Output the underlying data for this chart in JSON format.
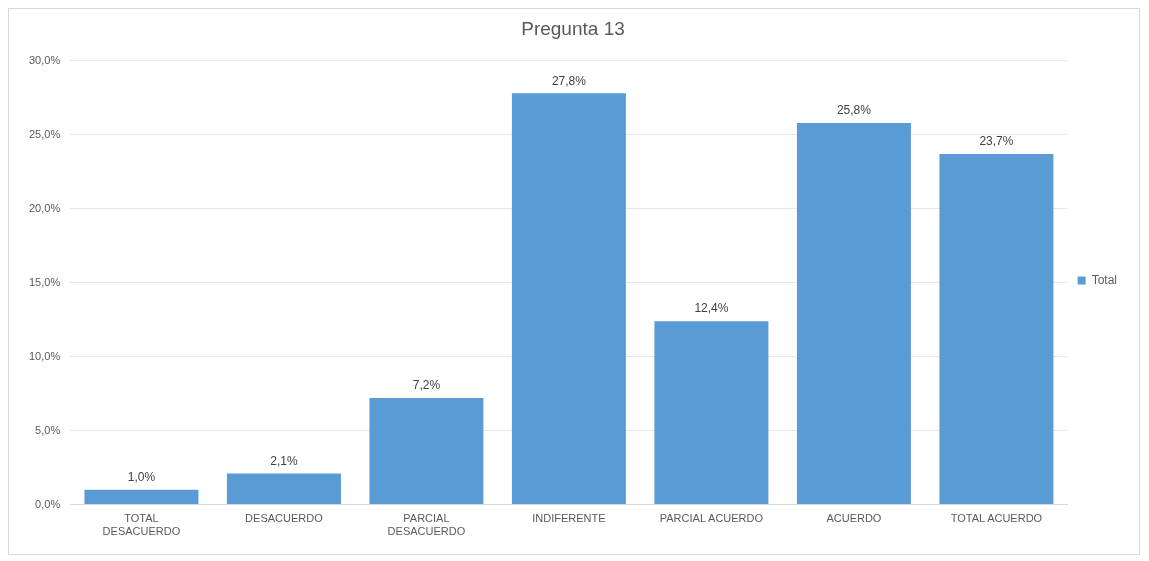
{
  "chart_data": {
    "type": "bar",
    "title": "Pregunta 13",
    "categories": [
      "TOTAL DESACUERDO",
      "DESACUERDO",
      "PARCIAL DESACUERDO",
      "INDIFERENTE",
      "PARCIAL ACUERDO",
      "ACUERDO",
      "TOTAL ACUERDO"
    ],
    "series": [
      {
        "name": "Total",
        "color": "#5b9bd5",
        "values": [
          1.0,
          2.1,
          7.2,
          27.8,
          12.4,
          25.8,
          23.7
        ],
        "value_labels": [
          "1,0%",
          "2,1%",
          "7,2%",
          "27,8%",
          "12,4%",
          "25,8%",
          "23,7%"
        ]
      }
    ],
    "ylim": [
      0,
      30
    ],
    "yticks": [
      {
        "value": 0,
        "label": "0,0%"
      },
      {
        "value": 5,
        "label": "5,0%"
      },
      {
        "value": 10,
        "label": "10,0%"
      },
      {
        "value": 15,
        "label": "15,0%"
      },
      {
        "value": 20,
        "label": "20,0%"
      },
      {
        "value": 25,
        "label": "25,0%"
      },
      {
        "value": 30,
        "label": "30,0%"
      }
    ],
    "grid": "y",
    "legend": "right"
  }
}
